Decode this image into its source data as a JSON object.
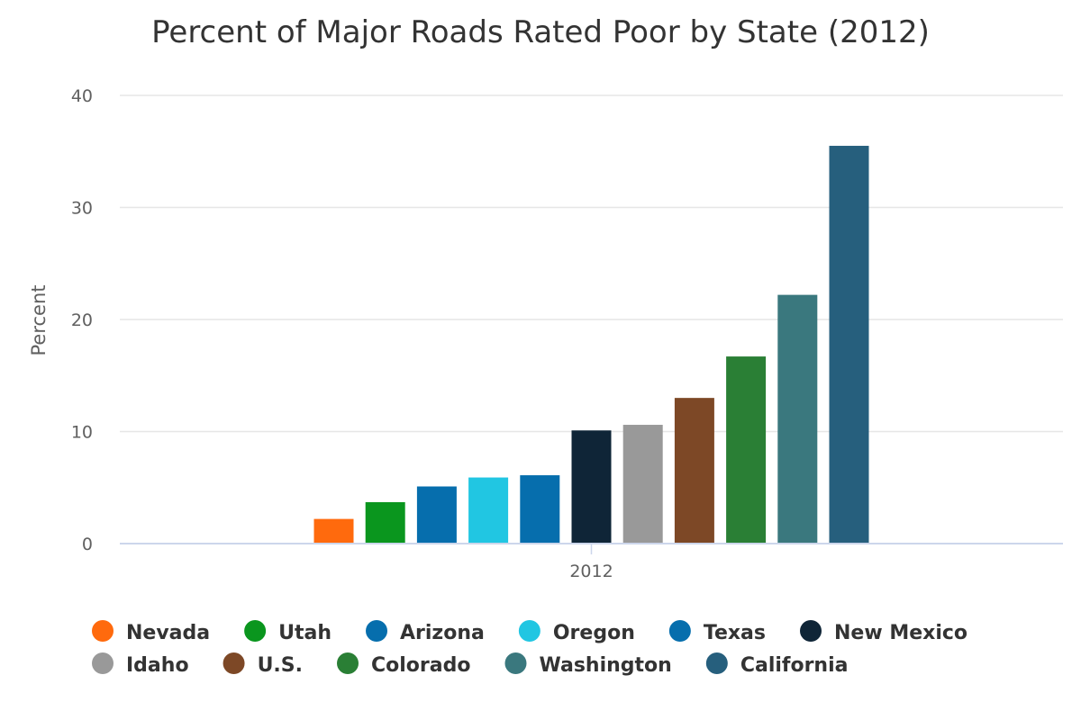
{
  "chart_data": {
    "type": "bar",
    "title": "Percent of Major Roads Rated Poor by State (2012)",
    "ylabel": "Percent",
    "xlabel": "",
    "categories": [
      "2012"
    ],
    "ylim": [
      0,
      40
    ],
    "yticks": [
      0,
      10,
      20,
      30,
      40
    ],
    "grid": true,
    "legend_position": "bottom",
    "series": [
      {
        "name": "Nevada",
        "color": "#ff6a0d",
        "values": [
          2.2
        ]
      },
      {
        "name": "Utah",
        "color": "#0a961e",
        "values": [
          3.7
        ]
      },
      {
        "name": "Arizona",
        "color": "#066ead",
        "values": [
          5.1
        ]
      },
      {
        "name": "Oregon",
        "color": "#21c6e2",
        "values": [
          5.9
        ]
      },
      {
        "name": "Texas",
        "color": "#066ead",
        "values": [
          6.1
        ]
      },
      {
        "name": "New Mexico",
        "color": "#0f2537",
        "values": [
          10.1
        ]
      },
      {
        "name": "Idaho",
        "color": "#999999",
        "values": [
          10.6
        ]
      },
      {
        "name": "U.S.",
        "color": "#7d4826",
        "values": [
          13.0
        ]
      },
      {
        "name": "Colorado",
        "color": "#2a7f35",
        "values": [
          16.7
        ]
      },
      {
        "name": "Washington",
        "color": "#3a787e",
        "values": [
          22.2
        ]
      },
      {
        "name": "California",
        "color": "#265f7d",
        "values": [
          35.5
        ]
      }
    ]
  }
}
